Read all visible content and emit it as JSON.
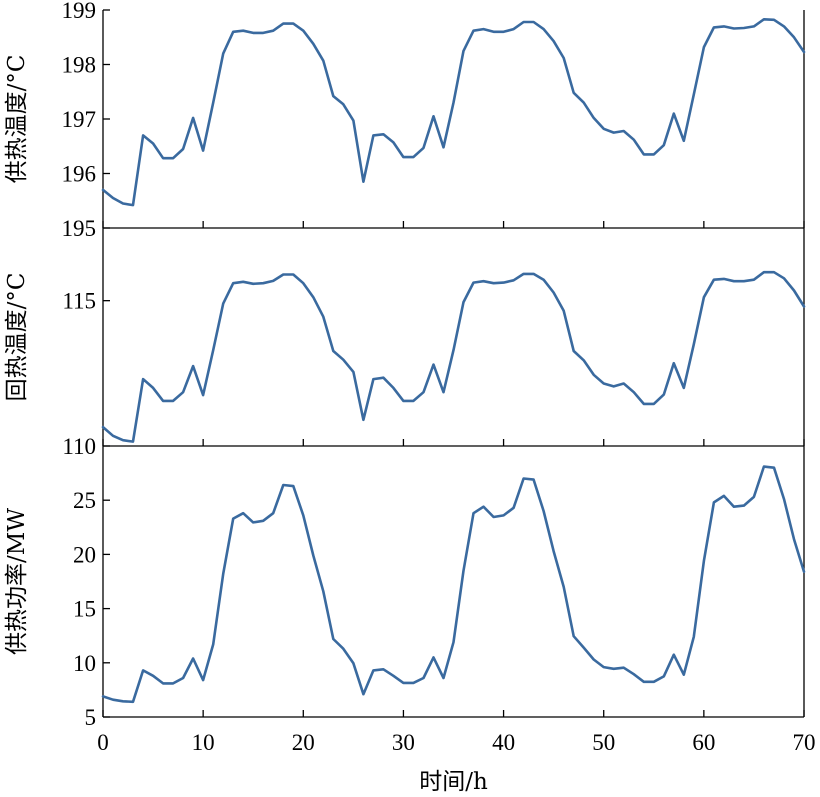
{
  "chart_data": [
    {
      "type": "line",
      "ylabel": "供热温度/°C",
      "ylim": [
        195,
        199
      ],
      "yticks": [
        195,
        196,
        197,
        198,
        199
      ],
      "xlim": [
        0,
        70
      ],
      "color": "#3a6a9f",
      "x": [
        0,
        1,
        2,
        3,
        4,
        5,
        6,
        7,
        8,
        9,
        10,
        11,
        12,
        13,
        14,
        15,
        16,
        17,
        18,
        19,
        20,
        21,
        22,
        23,
        24,
        25,
        26,
        27,
        28,
        29,
        30,
        31,
        32,
        33,
        34,
        35,
        36,
        37,
        38,
        39,
        40,
        41,
        42,
        43,
        44,
        45,
        46,
        47,
        48,
        49,
        50,
        51,
        52,
        53,
        54,
        55,
        56,
        57,
        58,
        59,
        60,
        61,
        62,
        63,
        64,
        65,
        66,
        67,
        68,
        69,
        70
      ],
      "values": [
        195.7,
        195.55,
        195.45,
        195.42,
        196.7,
        196.55,
        196.28,
        196.28,
        196.45,
        197.02,
        196.42,
        197.3,
        198.2,
        198.6,
        198.62,
        198.58,
        198.58,
        198.62,
        198.75,
        198.75,
        198.62,
        198.38,
        198.07,
        197.42,
        197.27,
        196.97,
        195.85,
        196.7,
        196.72,
        196.57,
        196.3,
        196.3,
        196.47,
        197.05,
        196.48,
        197.3,
        198.25,
        198.62,
        198.65,
        198.6,
        198.6,
        198.65,
        198.78,
        198.78,
        198.65,
        198.43,
        198.12,
        197.48,
        197.3,
        197.02,
        196.82,
        196.75,
        196.78,
        196.62,
        196.35,
        196.35,
        196.52,
        197.1,
        196.6,
        197.45,
        198.32,
        198.68,
        198.7,
        198.66,
        198.67,
        198.7,
        198.83,
        198.82,
        198.7,
        198.5,
        198.23
      ]
    },
    {
      "type": "line",
      "ylabel": "回热温度/°C",
      "ylim": [
        110,
        117.5
      ],
      "yticks": [
        110,
        115
      ],
      "xlim": [
        0,
        70
      ],
      "color": "#3a6a9f",
      "x": [
        0,
        1,
        2,
        3,
        4,
        5,
        6,
        7,
        8,
        9,
        10,
        11,
        12,
        13,
        14,
        15,
        16,
        17,
        18,
        19,
        20,
        21,
        22,
        23,
        24,
        25,
        26,
        27,
        28,
        29,
        30,
        31,
        32,
        33,
        34,
        35,
        36,
        37,
        38,
        39,
        40,
        41,
        42,
        43,
        44,
        45,
        46,
        47,
        48,
        49,
        50,
        51,
        52,
        53,
        54,
        55,
        56,
        57,
        58,
        59,
        60,
        61,
        62,
        63,
        64,
        65,
        66,
        67,
        68,
        69,
        70
      ],
      "values": [
        110.65,
        110.35,
        110.2,
        110.15,
        112.3,
        112.0,
        111.55,
        111.55,
        111.85,
        112.75,
        111.75,
        113.3,
        114.9,
        115.6,
        115.65,
        115.58,
        115.6,
        115.68,
        115.9,
        115.9,
        115.6,
        115.12,
        114.45,
        113.27,
        112.97,
        112.55,
        110.9,
        112.3,
        112.35,
        112.0,
        111.55,
        111.55,
        111.85,
        112.8,
        111.85,
        113.3,
        114.95,
        115.62,
        115.67,
        115.6,
        115.62,
        115.7,
        115.92,
        115.92,
        115.72,
        115.28,
        114.65,
        113.27,
        112.95,
        112.45,
        112.15,
        112.05,
        112.15,
        111.85,
        111.45,
        111.45,
        111.77,
        112.85,
        112.0,
        113.5,
        115.12,
        115.72,
        115.75,
        115.67,
        115.67,
        115.72,
        115.98,
        115.98,
        115.77,
        115.35,
        114.8
      ]
    },
    {
      "type": "line",
      "ylabel": "供热功率/MW",
      "ylim": [
        5,
        30
      ],
      "yticks": [
        5,
        10,
        15,
        20,
        25
      ],
      "xlim": [
        0,
        70
      ],
      "xticks": [
        0,
        10,
        20,
        30,
        40,
        50,
        60,
        70
      ],
      "xlabel": "时间/h",
      "color": "#3a6a9f",
      "x": [
        0,
        1,
        2,
        3,
        4,
        5,
        6,
        7,
        8,
        9,
        10,
        11,
        12,
        13,
        14,
        15,
        16,
        17,
        18,
        19,
        20,
        21,
        22,
        23,
        24,
        25,
        26,
        27,
        28,
        29,
        30,
        31,
        32,
        33,
        34,
        35,
        36,
        37,
        38,
        39,
        40,
        41,
        42,
        43,
        44,
        45,
        46,
        47,
        48,
        49,
        50,
        51,
        52,
        53,
        54,
        55,
        56,
        57,
        58,
        59,
        60,
        61,
        62,
        63,
        64,
        65,
        66,
        67,
        68,
        69,
        70
      ],
      "values": [
        6.9,
        6.6,
        6.45,
        6.4,
        9.3,
        8.8,
        8.1,
        8.1,
        8.6,
        10.4,
        8.4,
        11.7,
        18.2,
        23.3,
        23.8,
        22.95,
        23.1,
        23.8,
        26.4,
        26.3,
        23.6,
        19.9,
        16.6,
        12.2,
        11.3,
        9.95,
        7.1,
        9.3,
        9.4,
        8.8,
        8.15,
        8.15,
        8.6,
        10.5,
        8.6,
        11.9,
        18.5,
        23.8,
        24.4,
        23.45,
        23.6,
        24.3,
        27.0,
        26.9,
        24.0,
        20.3,
        17.0,
        12.45,
        11.4,
        10.3,
        9.6,
        9.45,
        9.55,
        8.95,
        8.25,
        8.25,
        8.75,
        10.75,
        8.9,
        12.4,
        19.4,
        24.8,
        25.4,
        24.4,
        24.5,
        25.3,
        28.1,
        28.0,
        25.1,
        21.4,
        18.4
      ]
    }
  ]
}
